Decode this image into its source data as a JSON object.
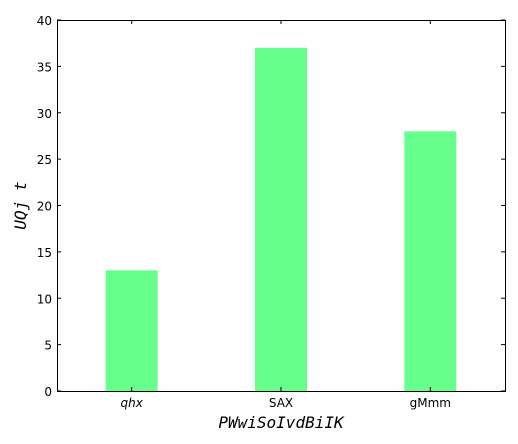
{
  "chart_data": {
    "type": "bar",
    "title": "",
    "xlabel": "PWwiSoIvdBiIK",
    "ylabel": "UQj t",
    "categories": [
      "qhx",
      "SAX",
      "gMmm"
    ],
    "category_italic": [
      true,
      false,
      false
    ],
    "values": [
      13,
      37,
      28
    ],
    "ylim": [
      0,
      40
    ],
    "yticks": [
      0,
      5,
      10,
      15,
      20,
      25,
      30,
      35,
      40
    ],
    "bar_color": "#66ff8c",
    "grid": false,
    "legend": "none"
  }
}
